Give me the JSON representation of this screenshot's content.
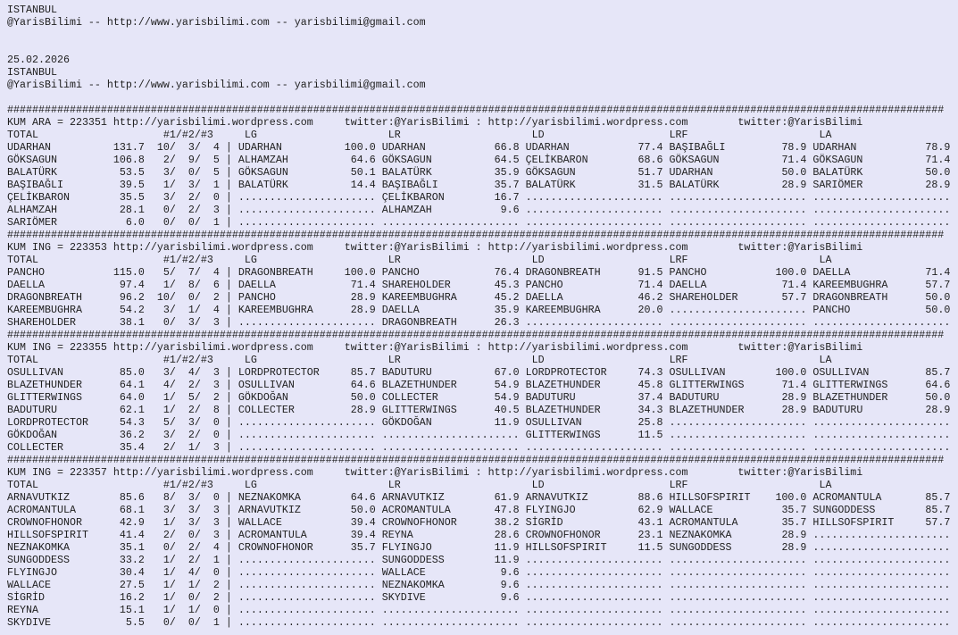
{
  "header": {
    "city": "ISTANBUL",
    "contact": "@YarisBilimi -- http://www.yarisbilimi.com -- yarisbilimi@gmail.com",
    "date": "25.02.2026"
  },
  "separator_char": "#",
  "empty_cell": "......................",
  "column_headers": {
    "total": "TOTAL",
    "places": "#1/#2/#3",
    "lg": "LG",
    "lr": "LR",
    "ld": "LD",
    "lrf": "LRF",
    "la": "LA"
  },
  "races": [
    {
      "title_line": "KUM ARA = 223351 http://yarisbilimi.wordpress.com     twitter:@YarisBilimi : http://yarisbilimi.wordpress.com        twitter:@YarisBilimi",
      "totals": [
        [
          "UDARHAN",
          "131.7",
          "10",
          "3",
          "4"
        ],
        [
          "GÖKSAGUN",
          "106.8",
          "2",
          "9",
          "5"
        ],
        [
          "BALATÜRK",
          "53.5",
          "3",
          "0",
          "5"
        ],
        [
          "BAŞIBAĞLI",
          "39.5",
          "1",
          "3",
          "1"
        ],
        [
          "ÇELİKBARON",
          "35.5",
          "3",
          "2",
          "0"
        ],
        [
          "ALHAMZAH",
          "28.1",
          "0",
          "2",
          "3"
        ],
        [
          "SARIÖMER",
          "6.0",
          "0",
          "0",
          "1"
        ]
      ],
      "lg": [
        [
          "UDARHAN",
          "100.0"
        ],
        [
          "ALHAMZAH",
          "64.6"
        ],
        [
          "GÖKSAGUN",
          "50.1"
        ],
        [
          "BALATÜRK",
          "14.4"
        ]
      ],
      "lr": [
        [
          "UDARHAN",
          "66.8"
        ],
        [
          "GÖKSAGUN",
          "64.5"
        ],
        [
          "BALATÜRK",
          "35.9"
        ],
        [
          "BAŞIBAĞLI",
          "35.7"
        ],
        [
          "ÇELİKBARON",
          "16.7"
        ],
        [
          "ALHAMZAH",
          "9.6"
        ]
      ],
      "ld": [
        [
          "UDARHAN",
          "77.4"
        ],
        [
          "ÇELİKBARON",
          "68.6"
        ],
        [
          "GÖKSAGUN",
          "51.7"
        ],
        [
          "BALATÜRK",
          "31.5"
        ]
      ],
      "lrf": [
        [
          "BAŞIBAĞLI",
          "78.9"
        ],
        [
          "GÖKSAGUN",
          "71.4"
        ],
        [
          "UDARHAN",
          "50.0"
        ],
        [
          "BALATÜRK",
          "28.9"
        ]
      ],
      "la": [
        [
          "UDARHAN",
          "78.9"
        ],
        [
          "GÖKSAGUN",
          "71.4"
        ],
        [
          "BALATÜRK",
          "50.0"
        ],
        [
          "SARIÖMER",
          "28.9"
        ]
      ]
    },
    {
      "title_line": "KUM ING = 223353 http://yarisbilimi.wordpress.com     twitter:@YarisBilimi : http://yarisbilimi.wordpress.com        twitter:@YarisBilimi",
      "totals": [
        [
          "PANCHO",
          "115.0",
          "5",
          "7",
          "4"
        ],
        [
          "DAELLA",
          "97.4",
          "1",
          "8",
          "6"
        ],
        [
          "DRAGONBREATH",
          "96.2",
          "10",
          "0",
          "2"
        ],
        [
          "KAREEMBUGHRA",
          "54.2",
          "3",
          "1",
          "4"
        ],
        [
          "SHAREHOLDER",
          "38.1",
          "0",
          "3",
          "3"
        ]
      ],
      "lg": [
        [
          "DRAGONBREATH",
          "100.0"
        ],
        [
          "DAELLA",
          "71.4"
        ],
        [
          "PANCHO",
          "28.9"
        ],
        [
          "KAREEMBUGHRA",
          "28.9"
        ]
      ],
      "lr": [
        [
          "PANCHO",
          "76.4"
        ],
        [
          "SHAREHOLDER",
          "45.3"
        ],
        [
          "KAREEMBUGHRA",
          "45.2"
        ],
        [
          "DAELLA",
          "35.9"
        ],
        [
          "DRAGONBREATH",
          "26.3"
        ]
      ],
      "ld": [
        [
          "DRAGONBREATH",
          "91.5"
        ],
        [
          "PANCHO",
          "71.4"
        ],
        [
          "DAELLA",
          "46.2"
        ],
        [
          "KAREEMBUGHRA",
          "20.0"
        ]
      ],
      "lrf": [
        [
          "PANCHO",
          "100.0"
        ],
        [
          "DAELLA",
          "71.4"
        ],
        [
          "SHAREHOLDER",
          "57.7"
        ]
      ],
      "la": [
        [
          "DAELLA",
          "71.4"
        ],
        [
          "KAREEMBUGHRA",
          "57.7"
        ],
        [
          "DRAGONBREATH",
          "50.0"
        ],
        [
          "PANCHO",
          "50.0"
        ]
      ]
    },
    {
      "title_line": "KUM ING = 223355 http://yarisbilimi.wordpress.com     twitter:@YarisBilimi : http://yarisbilimi.wordpress.com        twitter:@YarisBilimi",
      "totals": [
        [
          "OSULLIVAN",
          "85.0",
          "3",
          "4",
          "3"
        ],
        [
          "BLAZETHUNDER",
          "64.1",
          "4",
          "2",
          "3"
        ],
        [
          "GLITTERWINGS",
          "64.0",
          "1",
          "5",
          "2"
        ],
        [
          "BADUTURU",
          "62.1",
          "1",
          "2",
          "8"
        ],
        [
          "LORDPROTECTOR",
          "54.3",
          "5",
          "3",
          "0"
        ],
        [
          "GÖKDOĞAN",
          "36.2",
          "3",
          "2",
          "0"
        ],
        [
          "COLLECTER",
          "35.4",
          "2",
          "1",
          "3"
        ]
      ],
      "lg": [
        [
          "LORDPROTECTOR",
          "85.7"
        ],
        [
          "OSULLIVAN",
          "64.6"
        ],
        [
          "GÖKDOĞAN",
          "50.0"
        ],
        [
          "COLLECTER",
          "28.9"
        ]
      ],
      "lr": [
        [
          "BADUTURU",
          "67.0"
        ],
        [
          "BLAZETHUNDER",
          "54.9"
        ],
        [
          "COLLECTER",
          "54.9"
        ],
        [
          "GLITTERWINGS",
          "40.5"
        ],
        [
          "GÖKDOĞAN",
          "11.9"
        ]
      ],
      "ld": [
        [
          "LORDPROTECTOR",
          "74.3"
        ],
        [
          "BLAZETHUNDER",
          "45.8"
        ],
        [
          "BADUTURU",
          "37.4"
        ],
        [
          "BLAZETHUNDER",
          "34.3"
        ],
        [
          "OSULLIVAN",
          "25.8"
        ],
        [
          "GLITTERWINGS",
          "11.5"
        ]
      ],
      "lrf": [
        [
          "OSULLIVAN",
          "100.0"
        ],
        [
          "GLITTERWINGS",
          "71.4"
        ],
        [
          "BADUTURU",
          "28.9"
        ],
        [
          "BLAZETHUNDER",
          "28.9"
        ]
      ],
      "la": [
        [
          "OSULLIVAN",
          "85.7"
        ],
        [
          "GLITTERWINGS",
          "64.6"
        ],
        [
          "BLAZETHUNDER",
          "50.0"
        ],
        [
          "BADUTURU",
          "28.9"
        ]
      ]
    },
    {
      "title_line": "KUM ING = 223357 http://yarisbilimi.wordpress.com     twitter:@YarisBilimi : http://yarisbilimi.wordpress.com        twitter:@YarisBilimi",
      "totals": [
        [
          "ARNAVUTKIZ",
          "85.6",
          "8",
          "3",
          "0"
        ],
        [
          "ACROMANTULA",
          "68.1",
          "3",
          "3",
          "3"
        ],
        [
          "CROWNOFHONOR",
          "42.9",
          "1",
          "3",
          "3"
        ],
        [
          "HILLSOFSPIRIT",
          "41.4",
          "2",
          "0",
          "3"
        ],
        [
          "NEZNAKOMKA",
          "35.1",
          "0",
          "2",
          "4"
        ],
        [
          "SUNGODDESS",
          "33.2",
          "1",
          "2",
          "1"
        ],
        [
          "FLYINGJO",
          "30.4",
          "1",
          "4",
          "0"
        ],
        [
          "WALLACE",
          "27.5",
          "1",
          "1",
          "2"
        ],
        [
          "SİGRİD",
          "16.2",
          "1",
          "0",
          "2"
        ],
        [
          "REYNA",
          "15.1",
          "1",
          "1",
          "0"
        ],
        [
          "SKYDIVE",
          "5.5",
          "0",
          "0",
          "1"
        ]
      ],
      "lg": [
        [
          "NEZNAKOMKA",
          "64.6"
        ],
        [
          "ARNAVUTKIZ",
          "50.0"
        ],
        [
          "WALLACE",
          "39.4"
        ],
        [
          "ACROMANTULA",
          "39.4"
        ],
        [
          "CROWNOFHONOR",
          "35.7"
        ]
      ],
      "lr": [
        [
          "ARNAVUTKIZ",
          "61.9"
        ],
        [
          "ACROMANTULA",
          "47.8"
        ],
        [
          "CROWNOFHONOR",
          "38.2"
        ],
        [
          "REYNA",
          "28.6"
        ],
        [
          "FLYINGJO",
          "11.9"
        ],
        [
          "SUNGODDESS",
          "11.9"
        ],
        [
          "WALLACE",
          "9.6"
        ],
        [
          "NEZNAKOMKA",
          "9.6"
        ],
        [
          "SKYDIVE",
          "9.6"
        ]
      ],
      "ld": [
        [
          "ARNAVUTKIZ",
          "88.6"
        ],
        [
          "FLYINGJO",
          "62.9"
        ],
        [
          "SİGRİD",
          "43.1"
        ],
        [
          "CROWNOFHONOR",
          "23.1"
        ],
        [
          "HILLSOFSPIRIT",
          "11.5"
        ]
      ],
      "lrf": [
        [
          "HILLSOFSPIRIT",
          "100.0"
        ],
        [
          "WALLACE",
          "35.7"
        ],
        [
          "ACROMANTULA",
          "35.7"
        ],
        [
          "NEZNAKOMKA",
          "28.9"
        ],
        [
          "SUNGODDESS",
          "28.9"
        ]
      ],
      "la": [
        [
          "ACROMANTULA",
          "85.7"
        ],
        [
          "SUNGODDESS",
          "85.7"
        ],
        [
          "HILLSOFSPIRIT",
          "57.7"
        ]
      ]
    }
  ]
}
